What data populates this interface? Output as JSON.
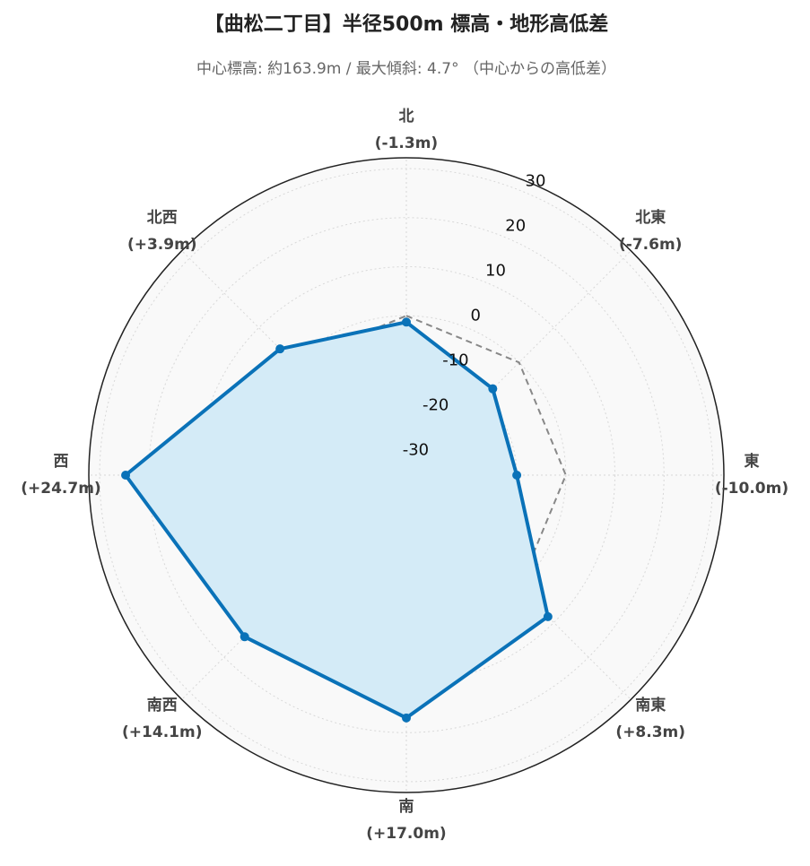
{
  "chart_data": {
    "type": "radar",
    "title": "【曲松二丁目】半径500m 標高・地形高低差",
    "subtitle": "中心標高: 約163.9m / 最大傾斜: 4.7° （中心からの高低差）",
    "categories": [
      "北",
      "北東",
      "東",
      "南東",
      "南",
      "南西",
      "西",
      "北西"
    ],
    "series": [
      {
        "name": "高低差",
        "color": "#0a72b8",
        "fill": "#d4ebf7",
        "values": [
          -1.3,
          -7.6,
          -10.0,
          8.3,
          17.0,
          14.1,
          24.7,
          3.9
        ],
        "value_labels": [
          "(-1.3m)",
          "(-7.6m)",
          "(-10.0m)",
          "(+8.3m)",
          "(+17.0m)",
          "(+14.1m)",
          "(+24.7m)",
          "(+3.9m)"
        ]
      },
      {
        "color": "#888888",
        "dash": true,
        "values": [
          0,
          0,
          0,
          0,
          0,
          0,
          0,
          0
        ]
      }
    ],
    "ylim": [
      -32.5,
      32.2
    ],
    "yticks": [
      -30,
      -20,
      -10,
      0,
      10,
      20,
      30
    ],
    "grid": true
  }
}
